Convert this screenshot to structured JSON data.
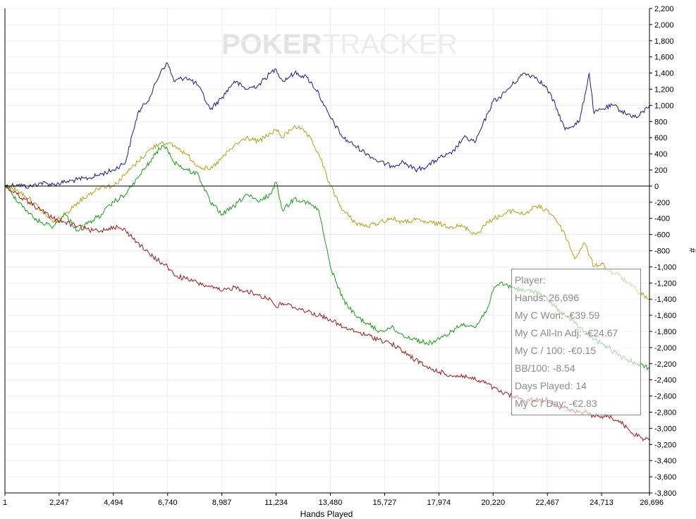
{
  "watermark": {
    "part1": "POKER",
    "part2": "TRACKER"
  },
  "tooltip": {
    "lines": [
      "Player:",
      "Hands: 26,696",
      "My C Won: -€39.59",
      "My C All-In Adj: -€24.67",
      "My C / 100: -€0.15",
      "BB/100: -8.54",
      "Days Played: 14",
      "My C / Day: -€2.83"
    ]
  },
  "chart_data": {
    "type": "line",
    "xlabel": "Hands Played",
    "ylabel": "#",
    "xlim": [
      1,
      26696
    ],
    "ylim": [
      -3800,
      2200
    ],
    "x_ticks": [
      1,
      2247,
      4494,
      6740,
      8987,
      11234,
      13480,
      15727,
      17974,
      20220,
      22467,
      24713,
      26696
    ],
    "x_tick_labels": [
      "1",
      "2,247",
      "4,494",
      "6,740",
      "8,987",
      "11,234",
      "13,480",
      "15,727",
      "17,974",
      "20,220",
      "22,467",
      "24,713",
      "26,696"
    ],
    "y_ticks": [
      2200,
      2000,
      1800,
      1600,
      1400,
      1200,
      1000,
      800,
      600,
      400,
      200,
      0,
      -200,
      -400,
      -600,
      -800,
      -1000,
      -1200,
      -1400,
      -1600,
      -1800,
      -2000,
      -2200,
      -2400,
      -2600,
      -2800,
      -3000,
      -3200,
      -3400,
      -3600,
      -3800
    ],
    "y_tick_labels": [
      "2,200",
      "2,000",
      "1,800",
      "1,600",
      "1,400",
      "1,200",
      "1,000",
      "800",
      "600",
      "400",
      "200",
      "0",
      "-200",
      "-400",
      "-600",
      "-800",
      "-1,000",
      "-1,200",
      "-1,400",
      "-1,600",
      "-1,800",
      "-2,000",
      "-2,200",
      "-2,400",
      "-2,600",
      "-2,800",
      "-3,000",
      "-3,200",
      "-3,400",
      "-3,600",
      "-3,800"
    ],
    "grid": true,
    "zero_line": true,
    "series": [
      {
        "color": "#1a1a8c",
        "x": [
          1,
          500,
          1000,
          1500,
          2000,
          2500,
          3000,
          3500,
          4000,
          4500,
          5000,
          5500,
          6000,
          6500,
          6740,
          7000,
          7500,
          8000,
          8500,
          9000,
          9500,
          10000,
          10500,
          11000,
          11234,
          11500,
          12000,
          12500,
          13000,
          13200,
          13480,
          14000,
          14500,
          15000,
          15500,
          16000,
          16500,
          17000,
          17500,
          18000,
          18500,
          19000,
          19500,
          20000,
          20220,
          20500,
          21000,
          21500,
          22000,
          22467,
          22800,
          23200,
          23800,
          24200,
          24400,
          24713,
          25200,
          25700,
          26200,
          26696
        ],
        "y": [
          0,
          20,
          -10,
          40,
          20,
          50,
          80,
          100,
          150,
          200,
          300,
          900,
          1100,
          1450,
          1520,
          1300,
          1350,
          1250,
          950,
          1100,
          1300,
          1200,
          1250,
          1400,
          1450,
          1300,
          1400,
          1350,
          1150,
          1000,
          850,
          600,
          500,
          400,
          300,
          250,
          300,
          200,
          250,
          350,
          400,
          600,
          550,
          900,
          1050,
          1100,
          1250,
          1400,
          1350,
          1200,
          1000,
          700,
          800,
          1400,
          900,
          950,
          1000,
          900,
          850,
          1000
        ]
      },
      {
        "color": "#b3a21f",
        "x": [
          1,
          500,
          1000,
          1500,
          2000,
          2500,
          3000,
          3500,
          4000,
          4494,
          5000,
          5500,
          6000,
          6500,
          6740,
          7000,
          7500,
          8000,
          8500,
          9000,
          9500,
          10000,
          10500,
          11000,
          11234,
          11500,
          12000,
          12500,
          13000,
          13480,
          14000,
          14500,
          15000,
          15500,
          16000,
          16500,
          17000,
          17500,
          18000,
          18500,
          19000,
          19500,
          20000,
          20220,
          20500,
          21000,
          21500,
          22000,
          22467,
          22800,
          23200,
          23600,
          24000,
          24400,
          24713,
          25000,
          25400,
          25800,
          26200,
          26696
        ],
        "y": [
          0,
          -50,
          -150,
          -300,
          -450,
          -350,
          -200,
          -100,
          0,
          0,
          150,
          300,
          450,
          550,
          520,
          500,
          400,
          250,
          200,
          350,
          500,
          600,
          550,
          650,
          700,
          600,
          750,
          650,
          400,
          0,
          -300,
          -450,
          -500,
          -450,
          -400,
          -450,
          -420,
          -450,
          -470,
          -500,
          -500,
          -600,
          -450,
          -400,
          -380,
          -300,
          -350,
          -250,
          -300,
          -400,
          -600,
          -900,
          -700,
          -1000,
          -950,
          -1050,
          -1100,
          -1200,
          -1300,
          -1400
        ]
      },
      {
        "color": "#1a9c1a",
        "x": [
          1,
          300,
          600,
          900,
          1200,
          1500,
          2000,
          2500,
          3000,
          3500,
          4000,
          4494,
          5000,
          5500,
          6000,
          6500,
          6740,
          7000,
          7500,
          8000,
          8500,
          9000,
          9500,
          10000,
          10500,
          11000,
          11234,
          11500,
          12000,
          12500,
          13000,
          13480,
          14000,
          14500,
          15000,
          15500,
          16000,
          16500,
          17000,
          17500,
          18000,
          18500,
          19000,
          19500,
          20000,
          20220,
          20500,
          21000,
          21500,
          22000,
          22467,
          22800,
          23200,
          23600,
          24000,
          24400,
          24713,
          25000,
          25400,
          25800,
          26200,
          26696
        ],
        "y": [
          0,
          -100,
          -200,
          -300,
          -400,
          -450,
          -500,
          -350,
          -550,
          -450,
          -350,
          -200,
          -100,
          100,
          300,
          500,
          450,
          300,
          200,
          150,
          -200,
          -350,
          -250,
          -100,
          -200,
          -100,
          50,
          -300,
          -150,
          -200,
          -300,
          -1000,
          -1400,
          -1600,
          -1700,
          -1800,
          -1750,
          -1850,
          -1900,
          -1950,
          -1900,
          -1800,
          -1700,
          -1750,
          -1500,
          -1300,
          -1200,
          -1250,
          -1300,
          -1300,
          -1400,
          -1500,
          -1600,
          -1700,
          -1800,
          -1900,
          -1950,
          -2000,
          -2100,
          -2150,
          -2200,
          -2250
        ]
      },
      {
        "color": "#9c1a1a",
        "x": [
          1,
          500,
          1000,
          1500,
          2000,
          2500,
          3000,
          3500,
          4000,
          4494,
          5000,
          5500,
          6000,
          6500,
          6740,
          7000,
          7500,
          8000,
          8500,
          9000,
          9500,
          10000,
          10500,
          11000,
          11234,
          11500,
          12000,
          12500,
          13000,
          13480,
          14000,
          14500,
          15000,
          15500,
          16000,
          16500,
          17000,
          17500,
          18000,
          18500,
          19000,
          19500,
          20000,
          20220,
          20500,
          21000,
          21500,
          22000,
          22467,
          22800,
          23200,
          23600,
          24000,
          24400,
          24713,
          25000,
          25400,
          25800,
          26200,
          26696
        ],
        "y": [
          0,
          -100,
          -200,
          -300,
          -400,
          -450,
          -500,
          -550,
          -550,
          -500,
          -550,
          -700,
          -850,
          -950,
          -1000,
          -1100,
          -1150,
          -1200,
          -1250,
          -1300,
          -1250,
          -1300,
          -1350,
          -1400,
          -1500,
          -1450,
          -1500,
          -1550,
          -1600,
          -1650,
          -1750,
          -1800,
          -1850,
          -1900,
          -1950,
          -2050,
          -2150,
          -2250,
          -2300,
          -2350,
          -2350,
          -2400,
          -2450,
          -2500,
          -2550,
          -2600,
          -2650,
          -2650,
          -2650,
          -2700,
          -2750,
          -2800,
          -2800,
          -2850,
          -2850,
          -2850,
          -2900,
          -3000,
          -3100,
          -3150
        ]
      }
    ]
  }
}
